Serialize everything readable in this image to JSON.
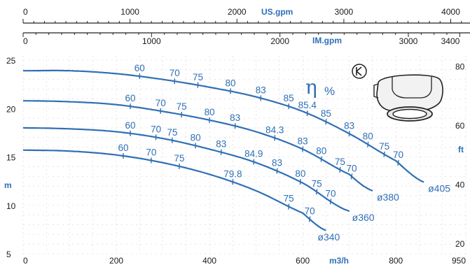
{
  "chart_data": {
    "type": "line",
    "title": "",
    "x_axis": {
      "label": "m3/h",
      "range": [
        0,
        950
      ],
      "ticks": [
        "0",
        "200",
        "400",
        "600",
        "800",
        "950"
      ],
      "tick_values": [
        0,
        200,
        400,
        600,
        800,
        950
      ]
    },
    "secondary_x_axes": [
      {
        "label": "US.gpm",
        "ticks": [
          "0",
          "1000",
          "2000",
          "3000",
          "4000"
        ],
        "tick_values": [
          0,
          1000,
          2000,
          3000,
          4000
        ],
        "range": [
          0,
          4180
        ]
      },
      {
        "label": "IM.gpm",
        "ticks": [
          "0",
          "1000",
          "2000",
          "3000",
          "3400"
        ],
        "tick_values": [
          0,
          1000,
          2000,
          3000,
          3400
        ],
        "range": [
          0,
          3480
        ]
      }
    ],
    "y_axis": {
      "label": "m",
      "range": [
        5,
        25
      ],
      "ticks": [
        "5",
        "10",
        "15",
        "20",
        "25"
      ],
      "tick_values": [
        5,
        10,
        15,
        20,
        25
      ]
    },
    "secondary_y_axis": {
      "label": "ft",
      "ticks": [
        "20",
        "40",
        "60",
        "80"
      ],
      "tick_values": [
        20,
        40,
        60,
        80
      ],
      "range": [
        16.4,
        82.0
      ]
    },
    "efficiency_symbol": "η",
    "efficiency_unit": "%",
    "series": [
      {
        "name": "ø405",
        "points": [
          [
            0,
            23.9
          ],
          [
            100,
            23.9
          ],
          [
            200,
            23.6
          ],
          [
            300,
            23.0
          ],
          [
            400,
            22.2
          ],
          [
            500,
            21.2
          ],
          [
            600,
            19.7
          ],
          [
            700,
            17.4
          ],
          [
            800,
            14.6
          ],
          [
            860,
            12.4
          ]
        ],
        "efficiency_labels": [
          {
            "label": "60",
            "x": 250
          },
          {
            "label": "70",
            "x": 325
          },
          {
            "label": "75",
            "x": 375
          },
          {
            "label": "80",
            "x": 445
          },
          {
            "label": "83",
            "x": 510
          },
          {
            "label": "85",
            "x": 570
          },
          {
            "label": "85.4",
            "x": 610
          },
          {
            "label": "85",
            "x": 650
          },
          {
            "label": "83",
            "x": 700
          },
          {
            "label": "80",
            "x": 740
          },
          {
            "label": "75",
            "x": 775
          },
          {
            "label": "70",
            "x": 805
          }
        ]
      },
      {
        "name": "ø380",
        "points": [
          [
            0,
            20.8
          ],
          [
            100,
            20.7
          ],
          [
            200,
            20.4
          ],
          [
            300,
            19.7
          ],
          [
            400,
            18.8
          ],
          [
            500,
            17.6
          ],
          [
            600,
            15.8
          ],
          [
            700,
            13.2
          ],
          [
            750,
            11.5
          ]
        ],
        "efficiency_labels": [
          {
            "label": "60",
            "x": 230
          },
          {
            "label": "70",
            "x": 295
          },
          {
            "label": "75",
            "x": 340
          },
          {
            "label": "80",
            "x": 400
          },
          {
            "label": "83",
            "x": 455
          },
          {
            "label": "84.3",
            "x": 540
          },
          {
            "label": "83",
            "x": 600
          },
          {
            "label": "80",
            "x": 640
          },
          {
            "label": "75",
            "x": 680
          },
          {
            "label": "70",
            "x": 705
          }
        ]
      },
      {
        "name": "ø360",
        "points": [
          [
            0,
            18.0
          ],
          [
            100,
            17.9
          ],
          [
            200,
            17.6
          ],
          [
            300,
            16.9
          ],
          [
            400,
            15.8
          ],
          [
            500,
            14.4
          ],
          [
            600,
            12.3
          ],
          [
            700,
            9.4
          ]
        ],
        "efficiency_labels": [
          {
            "label": "60",
            "x": 230
          },
          {
            "label": "70",
            "x": 285
          },
          {
            "label": "75",
            "x": 320
          },
          {
            "label": "80",
            "x": 370
          },
          {
            "label": "83",
            "x": 425
          },
          {
            "label": "84.9",
            "x": 495
          },
          {
            "label": "83",
            "x": 545
          },
          {
            "label": "80",
            "x": 595
          },
          {
            "label": "75",
            "x": 630
          },
          {
            "label": "70",
            "x": 660
          }
        ]
      },
      {
        "name": "ø340",
        "points": [
          [
            0,
            15.7
          ],
          [
            100,
            15.6
          ],
          [
            200,
            15.2
          ],
          [
            300,
            14.4
          ],
          [
            400,
            13.2
          ],
          [
            500,
            11.5
          ],
          [
            600,
            9.2
          ],
          [
            650,
            7.4
          ]
        ],
        "efficiency_labels": [
          {
            "label": "60",
            "x": 215
          },
          {
            "label": "70",
            "x": 275
          },
          {
            "label": "75",
            "x": 335
          },
          {
            "label": "79.8",
            "x": 450
          },
          {
            "label": "75",
            "x": 570
          },
          {
            "label": "70",
            "x": 615
          }
        ]
      }
    ],
    "grid": true,
    "legend": "none"
  }
}
